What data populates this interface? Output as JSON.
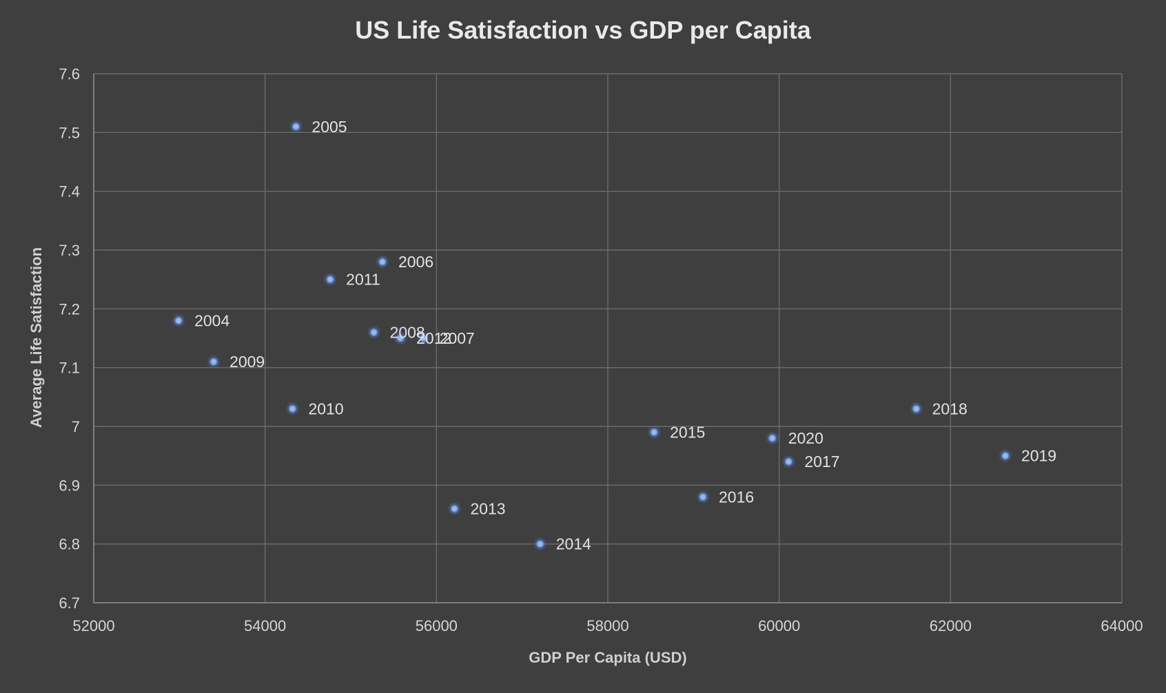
{
  "chart_data": {
    "type": "scatter",
    "title": "US Life Satisfaction vs GDP per Capita",
    "xlabel": "GDP Per Capita (USD)",
    "ylabel": "Average Life Satisfaction",
    "xlim": [
      52000,
      64000
    ],
    "ylim": [
      6.7,
      7.6
    ],
    "x_ticks": [
      52000,
      54000,
      56000,
      58000,
      60000,
      62000,
      64000
    ],
    "y_ticks": [
      6.7,
      6.8,
      6.9,
      7,
      7.1,
      7.2,
      7.3,
      7.4,
      7.5,
      7.6
    ],
    "x_tick_labels": [
      "52000",
      "54000",
      "56000",
      "58000",
      "60000",
      "62000",
      "64000"
    ],
    "y_tick_labels": [
      "6.7",
      "6.8",
      "6.9",
      "7",
      "7.1",
      "7.2",
      "7.3",
      "7.4",
      "7.5",
      "7.6"
    ],
    "grid": true,
    "legend": "none",
    "marker_color": "#9ab8ea",
    "background_color": "#3f3f3f",
    "points": [
      {
        "label": "2004",
        "x": 52990,
        "y": 7.18
      },
      {
        "label": "2005",
        "x": 54360,
        "y": 7.51
      },
      {
        "label": "2006",
        "x": 55370,
        "y": 7.28
      },
      {
        "label": "2007",
        "x": 55850,
        "y": 7.15
      },
      {
        "label": "2008",
        "x": 55270,
        "y": 7.16
      },
      {
        "label": "2009",
        "x": 53400,
        "y": 7.11
      },
      {
        "label": "2010",
        "x": 54320,
        "y": 7.03
      },
      {
        "label": "2011",
        "x": 54760,
        "y": 7.25
      },
      {
        "label": "2012",
        "x": 55580,
        "y": 7.15
      },
      {
        "label": "2013",
        "x": 56210,
        "y": 6.86
      },
      {
        "label": "2014",
        "x": 57210,
        "y": 6.8
      },
      {
        "label": "2015",
        "x": 58540,
        "y": 6.99
      },
      {
        "label": "2016",
        "x": 59110,
        "y": 6.88
      },
      {
        "label": "2017",
        "x": 60110,
        "y": 6.94
      },
      {
        "label": "2018",
        "x": 61600,
        "y": 7.03
      },
      {
        "label": "2019",
        "x": 62640,
        "y": 6.95
      },
      {
        "label": "2020",
        "x": 59920,
        "y": 6.98
      }
    ]
  }
}
